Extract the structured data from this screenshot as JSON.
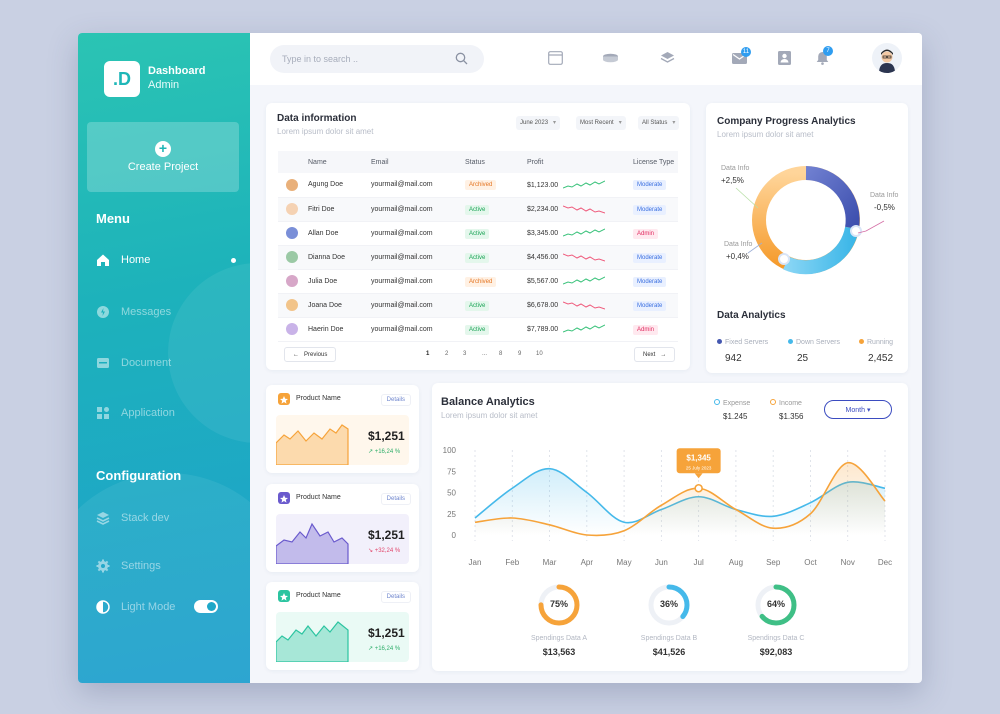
{
  "brand": {
    "title": "Dashboard",
    "subtitle": "Admin",
    "logo_text": ".D"
  },
  "sidebar": {
    "create_label": "Create Project",
    "menu_title": "Menu",
    "items": [
      {
        "label": "Home",
        "icon": "home-icon"
      },
      {
        "label": "Messages",
        "icon": "messages-icon"
      },
      {
        "label": "Document",
        "icon": "document-icon"
      },
      {
        "label": "Application",
        "icon": "application-icon"
      }
    ],
    "config_title": "Configuration",
    "config_items": [
      {
        "label": "Stack dev",
        "icon": "stack-icon"
      },
      {
        "label": "Settings",
        "icon": "gear-icon"
      },
      {
        "label": "Light Mode",
        "icon": "contrast-icon"
      }
    ]
  },
  "topbar": {
    "search_placeholder": "Type in to search ..",
    "mail_badge": "11",
    "bell_badge": "7"
  },
  "data_info": {
    "title": "Data information",
    "subtitle": "Lorem ipsum dolor sit amet",
    "filters": [
      "June 2023",
      "Most Recent",
      "All Status"
    ],
    "columns": [
      "Name",
      "Email",
      "Status",
      "Profit",
      "License Type"
    ],
    "rows": [
      {
        "name": "Agung Doe",
        "email": "yourmail@mail.com",
        "status": "Archived",
        "profit": "$1,123.00",
        "license": "Moderate"
      },
      {
        "name": "Fitri Doe",
        "email": "yourmail@mail.com",
        "status": "Active",
        "profit": "$2,234.00",
        "license": "Moderate"
      },
      {
        "name": "Allan Doe",
        "email": "yourmail@mail.com",
        "status": "Active",
        "profit": "$3,345.00",
        "license": "Admin"
      },
      {
        "name": "Dianna Doe",
        "email": "yourmail@mail.com",
        "status": "Active",
        "profit": "$4,456.00",
        "license": "Moderate"
      },
      {
        "name": "Julia Doe",
        "email": "yourmail@mail.com",
        "status": "Archived",
        "profit": "$5,567.00",
        "license": "Moderate"
      },
      {
        "name": "Joana Doe",
        "email": "yourmail@mail.com",
        "status": "Active",
        "profit": "$6,678.00",
        "license": "Moderate"
      },
      {
        "name": "Haerin Doe",
        "email": "yourmail@mail.com",
        "status": "Active",
        "profit": "$7,789.00",
        "license": "Admin"
      }
    ],
    "prev_label": "Previous",
    "next_label": "Next",
    "pages": [
      "1",
      "2",
      "3",
      "...",
      "8",
      "9",
      "10"
    ]
  },
  "progress": {
    "title": "Company Progress Analytics",
    "subtitle": "Lorem ipsum dolor sit amet",
    "labels": [
      {
        "name": "Data Info",
        "value": "+2,5%"
      },
      {
        "name": "Data Info",
        "value": "-0,5%"
      },
      {
        "name": "Data Info",
        "value": "+0,4%"
      }
    ],
    "analytics_title": "Data Analytics",
    "legend": [
      {
        "name": "Fixed Servers",
        "value": "942",
        "color": "#4457b0"
      },
      {
        "name": "Down Servers",
        "value": "25",
        "color": "#45b9ea"
      },
      {
        "name": "Running",
        "value": "2,452",
        "color": "#f6a33a"
      }
    ]
  },
  "products": [
    {
      "name": "Product Name",
      "details": "Details",
      "amount": "$1,251",
      "change": "+16,24 %",
      "color": "#f6a33a",
      "trend": "up"
    },
    {
      "name": "Product Name",
      "details": "Details",
      "amount": "$1,251",
      "change": "+32,24 %",
      "color": "#6a5acd",
      "trend": "down"
    },
    {
      "name": "Product Name",
      "details": "Details",
      "amount": "$1,251",
      "change": "+16,24 %",
      "color": "#2bc4a0",
      "trend": "up"
    }
  ],
  "balance": {
    "title": "Balance Analytics",
    "subtitle": "Lorem ipsum dolor sit amet",
    "expense_label": "Expense",
    "expense_value": "$1.245",
    "income_label": "Income",
    "income_value": "$1.356",
    "month_label": "Month",
    "tooltip_value": "$1,345",
    "tooltip_date": "25 July 2023",
    "rings": [
      {
        "pct": "75%",
        "label": "Spendings Data A",
        "value": "$13,563",
        "color": "#f6a33a",
        "fraction": 0.75
      },
      {
        "pct": "36%",
        "label": "Spendings Data B",
        "value": "$41,526",
        "color": "#45b9ea",
        "fraction": 0.36
      },
      {
        "pct": "64%",
        "label": "Spendings Data C",
        "value": "$92,083",
        "color": "#3fbf86",
        "fraction": 0.64
      }
    ]
  },
  "chart_data": {
    "type": "line",
    "title": "Balance Analytics",
    "categories": [
      "Jan",
      "Feb",
      "Mar",
      "Apr",
      "May",
      "Jun",
      "Jul",
      "Aug",
      "Sep",
      "Oct",
      "Nov",
      "Dec"
    ],
    "series": [
      {
        "name": "Expense",
        "color": "#45b9ea",
        "values": [
          20,
          55,
          78,
          50,
          15,
          30,
          45,
          30,
          22,
          38,
          62,
          55
        ]
      },
      {
        "name": "Income",
        "color": "#f6a33a",
        "values": [
          15,
          20,
          12,
          0,
          5,
          35,
          55,
          30,
          8,
          25,
          85,
          40
        ]
      }
    ],
    "yticks": [
      0,
      25,
      50,
      75,
      100
    ],
    "ylim": [
      0,
      100
    ],
    "highlight_month": "Jul"
  }
}
